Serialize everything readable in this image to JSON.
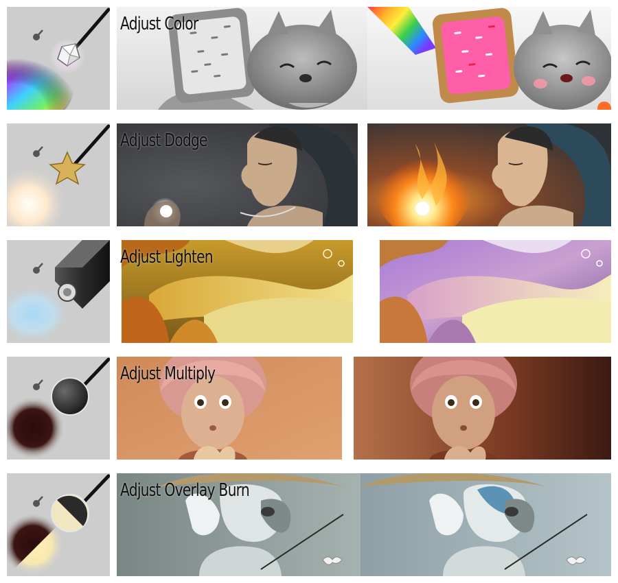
{
  "rows": [
    {
      "label": "Adjust Color",
      "brush": "rainbow-brush",
      "tool": "prism-wand-icon",
      "before": "grayscale-cat-pastry-painting",
      "after": "colored-cat-pastry-painting"
    },
    {
      "label": "Adjust Dodge",
      "brush": "glow-brush",
      "tool": "star-wand-icon",
      "before": "girl-holding-light-painting",
      "after": "girl-holding-fire-painting"
    },
    {
      "label": "Adjust Lighten",
      "brush": "light-blue-spray-brush",
      "tool": "spray-can-icon",
      "before": "golden-canyon-landscape-painting",
      "after": "purple-lit-canyon-landscape-painting"
    },
    {
      "label": "Adjust Multiply",
      "brush": "dark-brown-brush",
      "tool": "dark-disc-wand-icon",
      "before": "pink-haired-girl-painting",
      "after": "darkened-pink-haired-girl-painting"
    },
    {
      "label": "Adjust Overlay Burn",
      "brush": "dark-and-cream-brush",
      "tool": "half-disc-wand-icon",
      "before": "dog-fishing-painting",
      "after": "dog-fishing-blue-painting"
    }
  ],
  "colors": {
    "tool_bg": "#cdcdcd",
    "label_text": "#111111"
  }
}
